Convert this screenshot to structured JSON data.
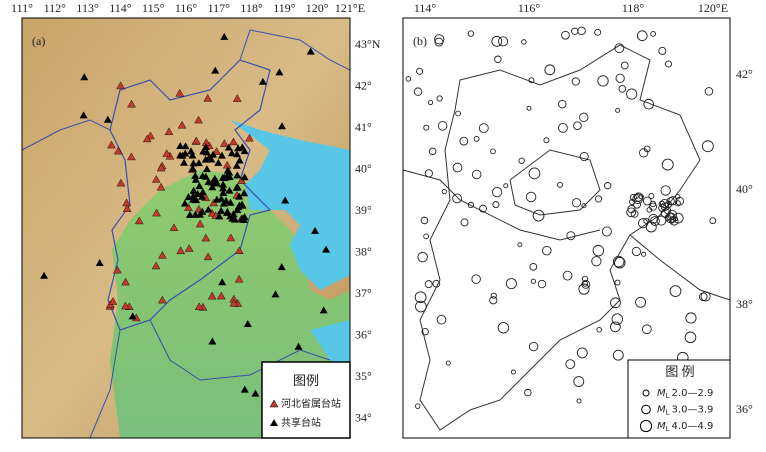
{
  "panel_a": {
    "label": "(a)",
    "x_labels": [
      "111°",
      "112°",
      "113°",
      "114°",
      "115°",
      "116°",
      "117°",
      "118°",
      "119°",
      "120°",
      "121°E"
    ],
    "y_labels": [
      "43°N",
      "42°",
      "41°",
      "40°",
      "39°",
      "38°",
      "37°",
      "36°",
      "35°",
      "34°"
    ],
    "legend": {
      "title": "图例",
      "items": [
        "河北省属台站",
        "共享台站"
      ]
    }
  },
  "panel_b": {
    "label": "(b)",
    "x_labels": [
      "114°",
      "116°",
      "118°",
      "120°E"
    ],
    "y_labels": [
      "42°",
      "40°",
      "38°",
      "36°"
    ],
    "legend": {
      "title": "图 例",
      "items": [
        {
          "symbol": "M",
          "sub": "L",
          "range": "2.0—2.9"
        },
        {
          "symbol": "M",
          "sub": "L",
          "range": "3.0—3.9"
        },
        {
          "symbol": "M",
          "sub": "L",
          "range": "4.0—4.9"
        }
      ]
    }
  }
}
